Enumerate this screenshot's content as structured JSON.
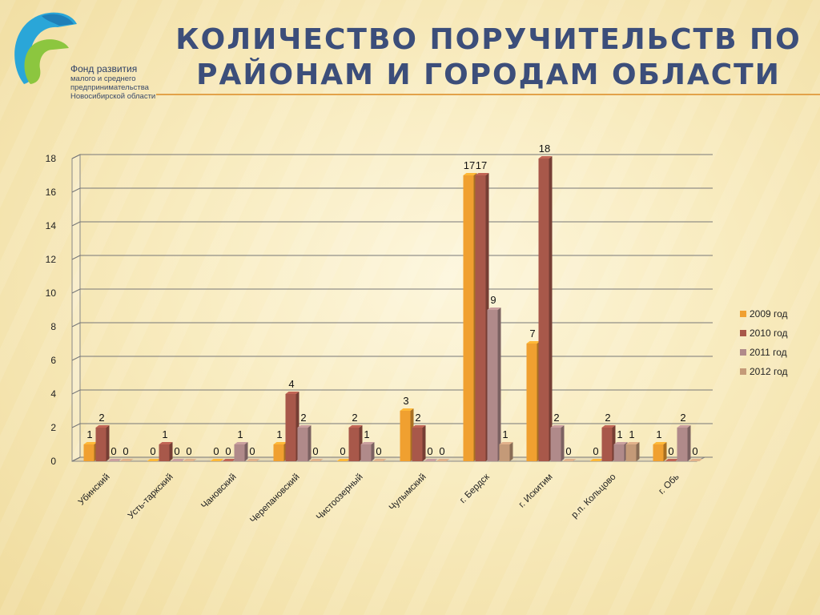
{
  "title": {
    "line1": "КОЛИЧЕСТВО  ПОРУЧИТЕЛЬСТВ   ПО",
    "line2": "РАЙОНАМ  И  ГОРОДАМ  ОБЛАСТИ"
  },
  "logo": {
    "name": "Фонд развития",
    "line2": "малого и среднего",
    "line3": "предпринимательства",
    "line4": "Новосибирской области"
  },
  "colors": {
    "s2009": "#f0a030",
    "s2010": "#a8584a",
    "s2011": "#b08a8a",
    "s2012": "#c49a78",
    "title": "#3c4e7a",
    "accent_line": "#e2a24a"
  },
  "chart_data": {
    "type": "bar",
    "categories": [
      "Убинский",
      "Усть-таркский",
      "Чановский",
      "Черепановский",
      "Чистоозерный",
      "Чулымский",
      "г. Бердск",
      "г. Искитим",
      "р.п. Кольцово",
      "г. Обь"
    ],
    "series": [
      {
        "name": "2009 год",
        "values": [
          1,
          0,
          0,
          1,
          0,
          3,
          17,
          7,
          0,
          1
        ]
      },
      {
        "name": "2010 год",
        "values": [
          2,
          1,
          0,
          4,
          2,
          2,
          17,
          18,
          2,
          0
        ]
      },
      {
        "name": "2011 год",
        "values": [
          0,
          0,
          1,
          2,
          1,
          0,
          9,
          2,
          1,
          2
        ]
      },
      {
        "name": "2012 год",
        "values": [
          0,
          0,
          0,
          0,
          0,
          0,
          1,
          0,
          1,
          0
        ]
      }
    ],
    "ylim": [
      0,
      18
    ],
    "yticks": [
      0,
      2,
      4,
      6,
      8,
      10,
      12,
      14,
      16,
      18
    ],
    "grid": true,
    "legend": "right"
  }
}
